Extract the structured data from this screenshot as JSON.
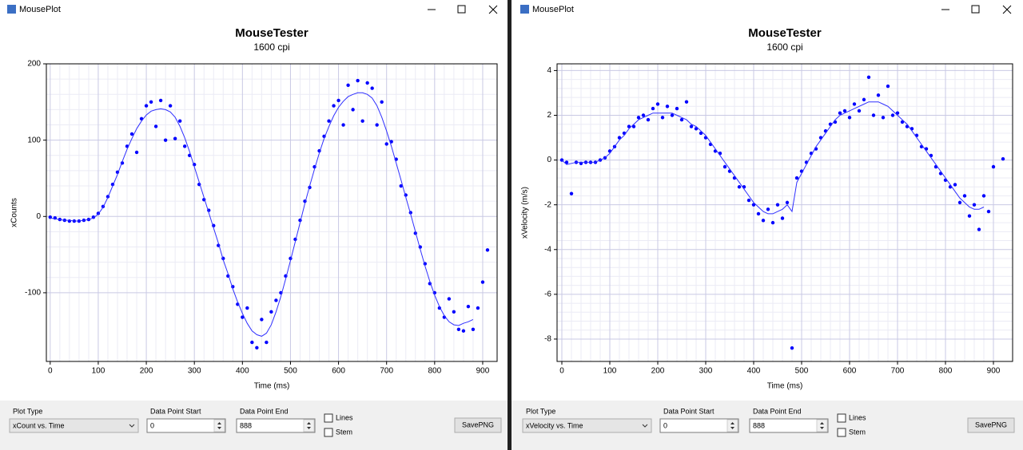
{
  "windows": [
    {
      "title": "MousePlot",
      "controls": {
        "plot_type_label": "Plot Type",
        "plot_type": "xCount vs. Time",
        "start_label": "Data Point Start",
        "start": "0",
        "end_label": "Data Point End",
        "end": "888",
        "lines": "Lines",
        "stem": "Stem",
        "button": "SavePNG"
      }
    },
    {
      "title": "MousePlot",
      "controls": {
        "plot_type_label": "Plot Type",
        "plot_type": "xVelocity vs. Time",
        "start_label": "Data Point Start",
        "start": "0",
        "end_label": "Data Point End",
        "end": "888",
        "lines": "Lines",
        "stem": "Stem",
        "button": "SavePNG"
      }
    }
  ],
  "chart_data": [
    {
      "type": "scatter",
      "title": "MouseTester",
      "subtitle": "1600 cpi",
      "x_label": "Time (ms)",
      "y_label": "xCounts",
      "xlim": [
        -8,
        930
      ],
      "xticks": [
        0,
        100,
        200,
        300,
        400,
        500,
        600,
        700,
        800,
        900
      ],
      "ylim": [
        -190,
        200
      ],
      "yticks": [
        -100,
        0,
        100,
        200
      ],
      "grid": true,
      "x": [
        0,
        10,
        20,
        30,
        40,
        50,
        60,
        70,
        80,
        90,
        100,
        110,
        120,
        130,
        140,
        150,
        160,
        170,
        180,
        190,
        200,
        210,
        220,
        230,
        240,
        250,
        260,
        270,
        280,
        290,
        300,
        310,
        320,
        330,
        340,
        350,
        360,
        370,
        380,
        390,
        400,
        410,
        420,
        430,
        440,
        450,
        460,
        470,
        480,
        490,
        500,
        510,
        520,
        530,
        540,
        550,
        560,
        570,
        580,
        590,
        600,
        610,
        620,
        630,
        640,
        650,
        660,
        670,
        680,
        690,
        700,
        710,
        720,
        730,
        740,
        750,
        760,
        770,
        780,
        790,
        800,
        810,
        820,
        830,
        840,
        850,
        860,
        870,
        880,
        890,
        900,
        910
      ],
      "series": [
        {
          "mode": "markers",
          "color": "#0000ff",
          "values": [
            -1,
            -2,
            -4,
            -5,
            -6,
            -6,
            -6,
            -5,
            -4,
            -1,
            4,
            13,
            26,
            42,
            58,
            70,
            92,
            108,
            84,
            128,
            145,
            150,
            118,
            152,
            100,
            145,
            102,
            125,
            92,
            80,
            68,
            42,
            22,
            8,
            -12,
            -38,
            -55,
            -78,
            -92,
            -115,
            -132,
            -120,
            -165,
            -172,
            -135,
            -165,
            -125,
            -110,
            -100,
            -78,
            -55,
            -30,
            -5,
            20,
            38,
            65,
            86,
            105,
            125,
            145,
            152,
            120,
            172,
            140,
            178,
            125,
            175,
            168,
            120,
            150,
            95,
            98,
            75,
            40,
            28,
            5,
            -22,
            -40,
            -62,
            -88,
            -100,
            -120,
            -132,
            -108,
            -125,
            -148,
            -150,
            -118,
            -148,
            -120,
            -86,
            -44
          ]
        },
        {
          "mode": "line",
          "color": "#3030ff",
          "values": [
            -2,
            -3,
            -4,
            -5,
            -5,
            -6,
            -6,
            -5,
            -4,
            -2,
            3,
            12,
            25,
            40,
            55,
            72,
            88,
            102,
            115,
            125,
            133,
            138,
            140,
            141,
            140,
            137,
            130,
            118,
            103,
            85,
            65,
            45,
            25,
            5,
            -15,
            -35,
            -57,
            -75,
            -95,
            -112,
            -127,
            -140,
            -150,
            -155,
            -157,
            -153,
            -142,
            -125,
            -105,
            -82,
            -58,
            -33,
            -8,
            17,
            40,
            62,
            83,
            102,
            118,
            132,
            143,
            151,
            157,
            160,
            162,
            162,
            160,
            155,
            145,
            130,
            112,
            92,
            70,
            48,
            25,
            3,
            -20,
            -43,
            -65,
            -85,
            -103,
            -118,
            -130,
            -138,
            -142,
            -143,
            -140,
            -138,
            -135,
            null,
            null,
            null
          ]
        }
      ]
    },
    {
      "type": "scatter",
      "title": "MouseTester",
      "subtitle": "1600 cpi",
      "x_label": "Time (ms)",
      "y_label": "xVelocity (m/s)",
      "xlim": [
        -10,
        940
      ],
      "xticks": [
        0,
        100,
        200,
        300,
        400,
        500,
        600,
        700,
        800,
        900
      ],
      "ylim": [
        -9,
        4.3
      ],
      "yticks": [
        -8,
        -6,
        -4,
        -2,
        0,
        2,
        4
      ],
      "grid": true,
      "x": [
        0,
        10,
        20,
        30,
        40,
        50,
        60,
        70,
        80,
        90,
        100,
        110,
        120,
        130,
        140,
        150,
        160,
        170,
        180,
        190,
        200,
        210,
        220,
        230,
        240,
        250,
        260,
        270,
        280,
        290,
        300,
        310,
        320,
        330,
        340,
        350,
        360,
        370,
        380,
        390,
        400,
        410,
        420,
        430,
        440,
        450,
        460,
        470,
        480,
        490,
        500,
        510,
        520,
        530,
        540,
        550,
        560,
        570,
        580,
        590,
        600,
        610,
        620,
        630,
        640,
        650,
        660,
        670,
        680,
        690,
        700,
        710,
        720,
        730,
        740,
        750,
        760,
        770,
        780,
        790,
        800,
        810,
        820,
        830,
        840,
        850,
        860,
        870,
        880,
        890,
        900,
        910,
        920
      ],
      "series": [
        {
          "mode": "markers",
          "color": "#0000ff",
          "values": [
            0,
            -0.1,
            -1.5,
            -0.1,
            -0.15,
            -0.1,
            -0.1,
            -0.1,
            0,
            0.1,
            0.4,
            0.6,
            1.0,
            1.2,
            1.5,
            1.5,
            1.9,
            2.0,
            1.8,
            2.3,
            2.5,
            1.9,
            2.4,
            2.0,
            2.3,
            1.8,
            2.6,
            1.5,
            1.4,
            1.2,
            1.0,
            0.7,
            0.4,
            0.3,
            -0.3,
            -0.5,
            -0.8,
            -1.2,
            -1.2,
            -1.8,
            -2.0,
            -2.4,
            -2.7,
            -2.2,
            -2.8,
            -2.0,
            -2.6,
            -1.9,
            -8.4,
            -0.8,
            -0.5,
            -0.1,
            0.3,
            0.5,
            1.0,
            1.3,
            1.6,
            1.7,
            2.1,
            2.2,
            1.9,
            2.5,
            2.2,
            2.7,
            3.7,
            2.0,
            2.9,
            1.9,
            3.3,
            2.0,
            2.1,
            1.7,
            1.5,
            1.4,
            1.1,
            0.6,
            0.5,
            0.2,
            -0.3,
            -0.6,
            -0.9,
            -1.2,
            -1.1,
            -1.9,
            -1.6,
            -2.5,
            -2.0,
            -3.1,
            -1.6,
            -2.3,
            -0.3,
            null,
            0.05
          ]
        },
        {
          "mode": "line",
          "color": "#3030ff",
          "values": [
            0,
            -0.2,
            -0.15,
            -0.1,
            -0.1,
            -0.1,
            -0.1,
            -0.1,
            0,
            0.1,
            0.3,
            0.6,
            0.9,
            1.1,
            1.4,
            1.6,
            1.8,
            1.9,
            2.0,
            2.1,
            2.1,
            2.1,
            2.1,
            2.1,
            2.0,
            1.9,
            1.8,
            1.6,
            1.5,
            1.3,
            1.1,
            0.8,
            0.5,
            0.2,
            -0.1,
            -0.4,
            -0.7,
            -1.0,
            -1.3,
            -1.6,
            -1.9,
            -2.1,
            -2.3,
            -2.4,
            -2.4,
            -2.3,
            -2.2,
            -2.0,
            -2.3,
            -1.0,
            -0.6,
            -0.2,
            0.2,
            0.6,
            0.9,
            1.2,
            1.5,
            1.8,
            2.0,
            2.1,
            2.2,
            2.3,
            2.4,
            2.5,
            2.6,
            2.6,
            2.6,
            2.5,
            2.4,
            2.2,
            2.0,
            1.8,
            1.6,
            1.3,
            1.0,
            0.7,
            0.4,
            0.1,
            -0.2,
            -0.5,
            -0.8,
            -1.1,
            -1.4,
            -1.7,
            -1.9,
            -2.1,
            -2.2,
            -2.2,
            -2.1,
            null,
            null,
            null,
            null
          ]
        }
      ]
    }
  ]
}
